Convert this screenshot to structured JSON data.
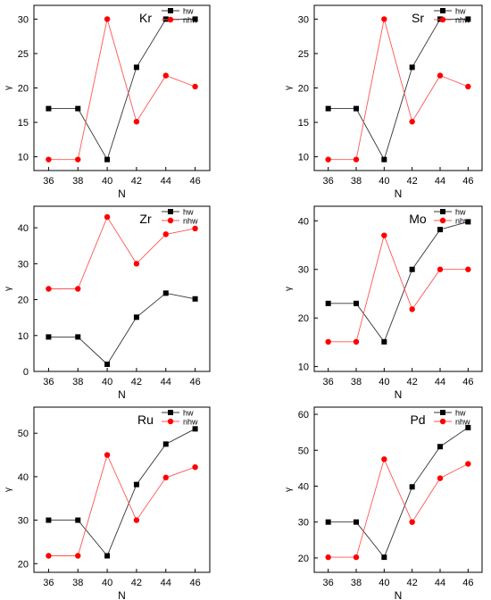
{
  "chart_data": [
    {
      "type": "line",
      "title": "Kr",
      "xlabel": "N",
      "ylabel": "γ",
      "x": [
        36,
        38,
        40,
        42,
        44,
        46
      ],
      "ylim": [
        8,
        32
      ],
      "yticks": [
        10,
        15,
        20,
        25,
        30
      ],
      "legend_position": "top-right",
      "series": [
        {
          "name": "hw",
          "marker": "square",
          "color": "#000000",
          "values": [
            17,
            17,
            9.6,
            23,
            30,
            30
          ]
        },
        {
          "name": "nhw",
          "marker": "circle",
          "color": "#ff0000",
          "values": [
            9.6,
            9.6,
            30,
            15.1,
            21.8,
            20.2
          ]
        }
      ]
    },
    {
      "type": "line",
      "title": "Sr",
      "xlabel": "N",
      "ylabel": "γ",
      "x": [
        36,
        38,
        40,
        42,
        44,
        46
      ],
      "ylim": [
        8,
        32
      ],
      "yticks": [
        10,
        15,
        20,
        25,
        30
      ],
      "legend_position": "top-right",
      "series": [
        {
          "name": "hw",
          "marker": "square",
          "color": "#000000",
          "values": [
            17,
            17,
            9.6,
            23,
            30,
            30
          ]
        },
        {
          "name": "nhw",
          "marker": "circle",
          "color": "#ff0000",
          "values": [
            9.6,
            9.6,
            30,
            15.1,
            21.8,
            20.2
          ]
        }
      ]
    },
    {
      "type": "line",
      "title": "Zr",
      "xlabel": "N",
      "ylabel": "γ",
      "x": [
        36,
        38,
        40,
        42,
        44,
        46
      ],
      "ylim": [
        0,
        46
      ],
      "yticks": [
        0,
        10,
        20,
        30,
        40
      ],
      "legend_position": "top-right",
      "series": [
        {
          "name": "hw",
          "marker": "square",
          "color": "#000000",
          "values": [
            9.6,
            9.6,
            2,
            15.1,
            21.8,
            20.2
          ]
        },
        {
          "name": "nhw",
          "marker": "circle",
          "color": "#ff0000",
          "values": [
            23,
            23,
            43,
            30,
            38.2,
            39.8
          ]
        }
      ]
    },
    {
      "type": "line",
      "title": "Mo",
      "xlabel": "N",
      "ylabel": "γ",
      "x": [
        36,
        38,
        40,
        42,
        44,
        46
      ],
      "ylim": [
        9,
        43
      ],
      "yticks": [
        10,
        20,
        30,
        40
      ],
      "legend_position": "top-right",
      "series": [
        {
          "name": "hw",
          "marker": "square",
          "color": "#000000",
          "values": [
            23,
            23,
            15.1,
            30,
            38.2,
            39.8
          ]
        },
        {
          "name": "nhw",
          "marker": "circle",
          "color": "#ff0000",
          "values": [
            15.1,
            15.1,
            37,
            21.8,
            30,
            30
          ]
        }
      ]
    },
    {
      "type": "line",
      "title": "Ru",
      "xlabel": "N",
      "ylabel": "γ",
      "x": [
        36,
        38,
        40,
        42,
        44,
        46
      ],
      "ylim": [
        18,
        56
      ],
      "yticks": [
        20,
        30,
        40,
        50
      ],
      "legend_position": "top-right",
      "series": [
        {
          "name": "hw",
          "marker": "square",
          "color": "#000000",
          "values": [
            30,
            30,
            21.8,
            38.2,
            47.5,
            51
          ]
        },
        {
          "name": "nhw",
          "marker": "circle",
          "color": "#ff0000",
          "values": [
            21.8,
            21.8,
            45,
            30,
            39.8,
            42.2
          ]
        }
      ]
    },
    {
      "type": "line",
      "title": "Pd",
      "xlabel": "N",
      "ylabel": "γ",
      "x": [
        36,
        38,
        40,
        42,
        44,
        46
      ],
      "ylim": [
        16,
        62
      ],
      "yticks": [
        20,
        30,
        40,
        50,
        60
      ],
      "legend_position": "top-right",
      "series": [
        {
          "name": "hw",
          "marker": "square",
          "color": "#000000",
          "values": [
            30,
            30,
            20.2,
            39.8,
            51,
            56.3
          ]
        },
        {
          "name": "nhw",
          "marker": "circle",
          "color": "#ff0000",
          "values": [
            20.2,
            20.2,
            47.5,
            30,
            42.2,
            46.2
          ]
        }
      ]
    }
  ]
}
